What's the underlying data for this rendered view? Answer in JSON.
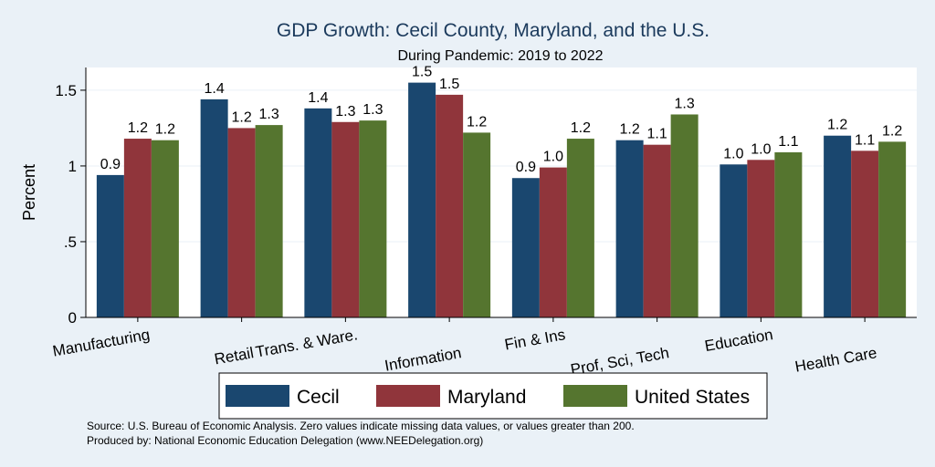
{
  "chart_data": {
    "type": "bar",
    "title": "GDP Growth: Cecil County, Maryland, and the U.S.",
    "subtitle": "During Pandemic: 2019 to 2022",
    "ylabel": "Percent",
    "xlabel": "",
    "ylim": [
      0,
      1.65
    ],
    "yticks": [
      "0",
      ".5",
      "1",
      "1.5"
    ],
    "ytick_values": [
      0,
      0.5,
      1,
      1.5
    ],
    "grid": true,
    "legend_position": "bottom",
    "categories": [
      "Manufacturing",
      "Retail",
      "Trans. & Ware.",
      "Information",
      "Fin & Ins",
      "Prof, Sci, Tech",
      "Education",
      "Health Care"
    ],
    "series": [
      {
        "name": "Cecil",
        "color": "#1a476f",
        "values": [
          0.94,
          1.44,
          1.38,
          1.55,
          0.92,
          1.17,
          1.01,
          1.2
        ],
        "labels": [
          "0.9",
          "1.4",
          "1.4",
          "1.5",
          "0.9",
          "1.2",
          "1.0",
          "1.2"
        ]
      },
      {
        "name": "Maryland",
        "color": "#90353b",
        "values": [
          1.18,
          1.25,
          1.29,
          1.47,
          0.99,
          1.14,
          1.04,
          1.1
        ],
        "labels": [
          "1.2",
          "1.2",
          "1.3",
          "1.5",
          "1.0",
          "1.1",
          "1.0",
          "1.1"
        ]
      },
      {
        "name": "United States",
        "color": "#55752f",
        "values": [
          1.17,
          1.27,
          1.3,
          1.22,
          1.18,
          1.34,
          1.09,
          1.16
        ],
        "labels": [
          "1.2",
          "1.3",
          "1.3",
          "1.2",
          "1.2",
          "1.3",
          "1.1",
          "1.2"
        ]
      }
    ],
    "notes": [
      "Source: U.S. Bureau of Economic Analysis. Zero values indicate missing data values, or values greater than 200.",
      "Produced by: National Economic Education Delegation (www.NEEDelegation.org)"
    ]
  }
}
